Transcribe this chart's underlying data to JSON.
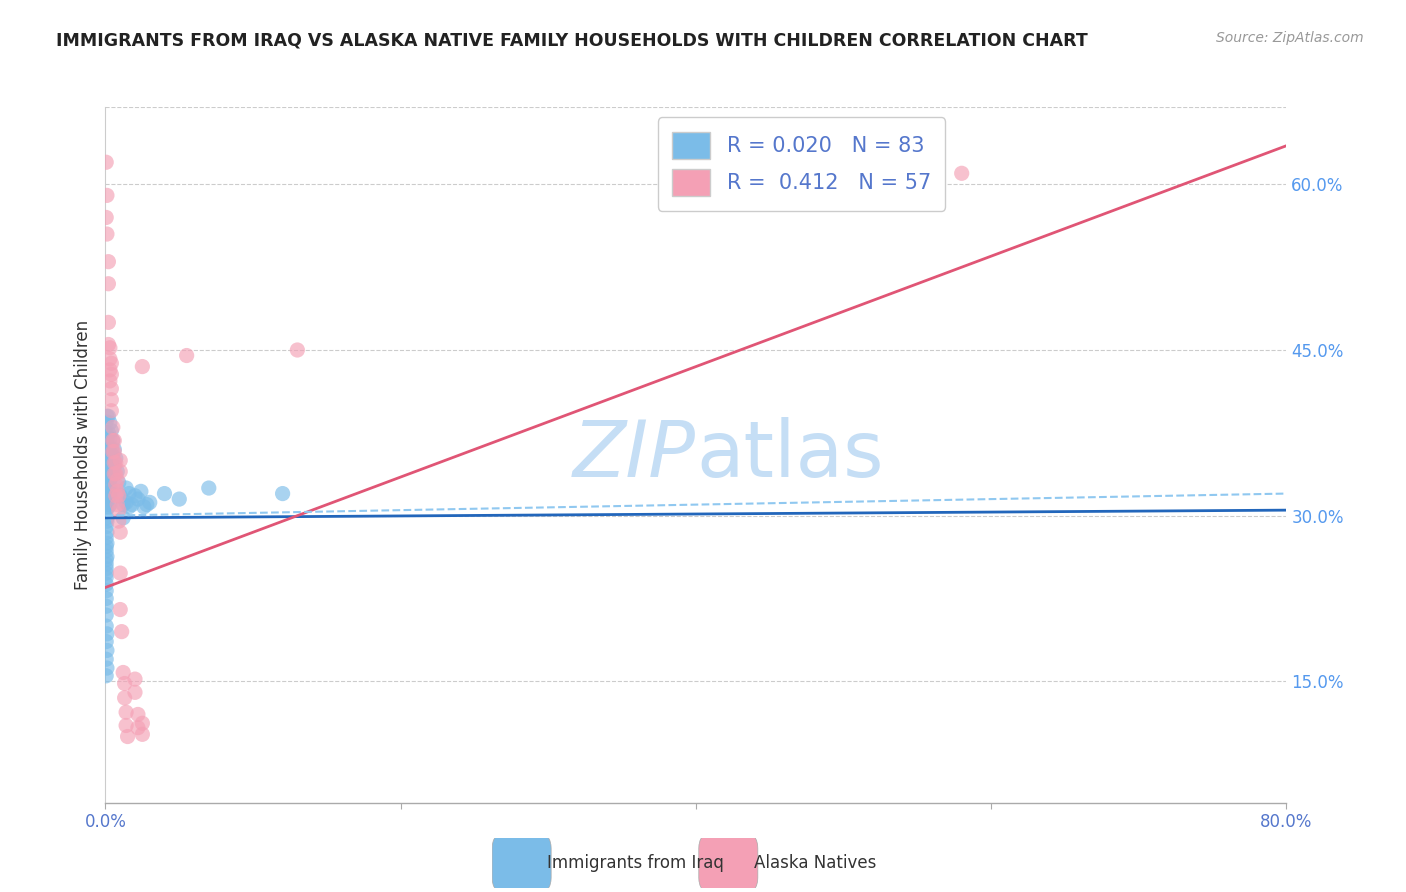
{
  "title": "IMMIGRANTS FROM IRAQ VS ALASKA NATIVE FAMILY HOUSEHOLDS WITH CHILDREN CORRELATION CHART",
  "source": "Source: ZipAtlas.com",
  "ylabel_label": "Family Households with Children",
  "xlabel_bottom_labels": [
    "Immigrants from Iraq",
    "Alaska Natives"
  ],
  "xmin": 0.0,
  "xmax": 0.8,
  "ymin": 0.04,
  "ymax": 0.67,
  "blue_color": "#7bbce8",
  "pink_color": "#f4a0b5",
  "blue_line_color": "#2266bb",
  "pink_line_color": "#e05575",
  "dashed_line_color": "#90c8f0",
  "watermark_color": "#c5def5",
  "legend_R1": "0.020",
  "legend_N1": "83",
  "legend_R2": "0.412",
  "legend_N2": "57",
  "ytick_positions": [
    0.15,
    0.3,
    0.45,
    0.6
  ],
  "ytick_labels": [
    "15.0%",
    "30.0%",
    "45.0%",
    "60.0%"
  ],
  "xtick_positions": [
    0.0,
    0.2,
    0.4,
    0.6,
    0.8
  ],
  "xtick_labels": [
    "0.0%",
    "",
    "",
    "",
    "80.0%"
  ],
  "blue_scatter": [
    [
      0.0005,
      0.385
    ],
    [
      0.0005,
      0.375
    ],
    [
      0.001,
      0.39
    ],
    [
      0.001,
      0.37
    ],
    [
      0.0005,
      0.355
    ],
    [
      0.0005,
      0.34
    ],
    [
      0.0005,
      0.33
    ],
    [
      0.001,
      0.32
    ],
    [
      0.0005,
      0.31
    ],
    [
      0.0005,
      0.305
    ],
    [
      0.001,
      0.298
    ],
    [
      0.001,
      0.295
    ],
    [
      0.0005,
      0.29
    ],
    [
      0.001,
      0.285
    ],
    [
      0.0005,
      0.28
    ],
    [
      0.001,
      0.275
    ],
    [
      0.0005,
      0.272
    ],
    [
      0.0005,
      0.268
    ],
    [
      0.001,
      0.263
    ],
    [
      0.0005,
      0.26
    ],
    [
      0.0005,
      0.256
    ],
    [
      0.0005,
      0.252
    ],
    [
      0.0005,
      0.248
    ],
    [
      0.0005,
      0.244
    ],
    [
      0.0005,
      0.238
    ],
    [
      0.0005,
      0.232
    ],
    [
      0.0005,
      0.225
    ],
    [
      0.0005,
      0.218
    ],
    [
      0.0005,
      0.21
    ],
    [
      0.0005,
      0.2
    ],
    [
      0.001,
      0.193
    ],
    [
      0.0005,
      0.186
    ],
    [
      0.001,
      0.178
    ],
    [
      0.0005,
      0.17
    ],
    [
      0.001,
      0.162
    ],
    [
      0.0005,
      0.155
    ],
    [
      0.002,
      0.39
    ],
    [
      0.002,
      0.375
    ],
    [
      0.002,
      0.36
    ],
    [
      0.002,
      0.345
    ],
    [
      0.002,
      0.335
    ],
    [
      0.002,
      0.326
    ],
    [
      0.002,
      0.317
    ],
    [
      0.002,
      0.308
    ],
    [
      0.003,
      0.384
    ],
    [
      0.003,
      0.37
    ],
    [
      0.003,
      0.358
    ],
    [
      0.003,
      0.348
    ],
    [
      0.003,
      0.338
    ],
    [
      0.003,
      0.328
    ],
    [
      0.003,
      0.318
    ],
    [
      0.003,
      0.31
    ],
    [
      0.004,
      0.377
    ],
    [
      0.004,
      0.36
    ],
    [
      0.004,
      0.347
    ],
    [
      0.004,
      0.335
    ],
    [
      0.004,
      0.322
    ],
    [
      0.005,
      0.368
    ],
    [
      0.005,
      0.352
    ],
    [
      0.005,
      0.338
    ],
    [
      0.006,
      0.36
    ],
    [
      0.006,
      0.345
    ],
    [
      0.007,
      0.352
    ],
    [
      0.008,
      0.34
    ],
    [
      0.009,
      0.33
    ],
    [
      0.01,
      0.318
    ],
    [
      0.012,
      0.31
    ],
    [
      0.012,
      0.298
    ],
    [
      0.014,
      0.325
    ],
    [
      0.014,
      0.312
    ],
    [
      0.016,
      0.32
    ],
    [
      0.016,
      0.308
    ],
    [
      0.018,
      0.31
    ],
    [
      0.02,
      0.318
    ],
    [
      0.022,
      0.315
    ],
    [
      0.024,
      0.322
    ],
    [
      0.026,
      0.308
    ],
    [
      0.028,
      0.31
    ],
    [
      0.03,
      0.312
    ],
    [
      0.04,
      0.32
    ],
    [
      0.05,
      0.315
    ],
    [
      0.07,
      0.325
    ],
    [
      0.12,
      0.32
    ]
  ],
  "pink_scatter": [
    [
      0.0005,
      0.62
    ],
    [
      0.0005,
      0.57
    ],
    [
      0.001,
      0.59
    ],
    [
      0.001,
      0.555
    ],
    [
      0.002,
      0.53
    ],
    [
      0.002,
      0.51
    ],
    [
      0.002,
      0.475
    ],
    [
      0.002,
      0.455
    ],
    [
      0.003,
      0.452
    ],
    [
      0.003,
      0.442
    ],
    [
      0.003,
      0.432
    ],
    [
      0.003,
      0.422
    ],
    [
      0.004,
      0.438
    ],
    [
      0.004,
      0.428
    ],
    [
      0.004,
      0.415
    ],
    [
      0.004,
      0.405
    ],
    [
      0.004,
      0.395
    ],
    [
      0.005,
      0.38
    ],
    [
      0.005,
      0.368
    ],
    [
      0.005,
      0.358
    ],
    [
      0.006,
      0.368
    ],
    [
      0.006,
      0.358
    ],
    [
      0.006,
      0.348
    ],
    [
      0.006,
      0.338
    ],
    [
      0.007,
      0.348
    ],
    [
      0.007,
      0.338
    ],
    [
      0.007,
      0.328
    ],
    [
      0.007,
      0.318
    ],
    [
      0.008,
      0.332
    ],
    [
      0.008,
      0.322
    ],
    [
      0.008,
      0.31
    ],
    [
      0.009,
      0.318
    ],
    [
      0.009,
      0.305
    ],
    [
      0.009,
      0.295
    ],
    [
      0.01,
      0.35
    ],
    [
      0.01,
      0.34
    ],
    [
      0.01,
      0.285
    ],
    [
      0.01,
      0.248
    ],
    [
      0.01,
      0.215
    ],
    [
      0.011,
      0.195
    ],
    [
      0.012,
      0.158
    ],
    [
      0.013,
      0.148
    ],
    [
      0.013,
      0.135
    ],
    [
      0.014,
      0.122
    ],
    [
      0.014,
      0.11
    ],
    [
      0.015,
      0.1
    ],
    [
      0.02,
      0.152
    ],
    [
      0.02,
      0.14
    ],
    [
      0.022,
      0.12
    ],
    [
      0.022,
      0.108
    ],
    [
      0.025,
      0.112
    ],
    [
      0.025,
      0.102
    ],
    [
      0.025,
      0.435
    ],
    [
      0.055,
      0.445
    ],
    [
      0.13,
      0.45
    ],
    [
      0.5,
      0.59
    ],
    [
      0.58,
      0.61
    ]
  ],
  "blue_line_x": [
    0.0,
    0.8
  ],
  "blue_line_y": [
    0.298,
    0.305
  ],
  "pink_line_x": [
    0.0,
    0.8
  ],
  "pink_line_y": [
    0.235,
    0.635
  ],
  "dashed_line_x": [
    0.0,
    0.8
  ],
  "dashed_line_y": [
    0.3,
    0.32
  ]
}
